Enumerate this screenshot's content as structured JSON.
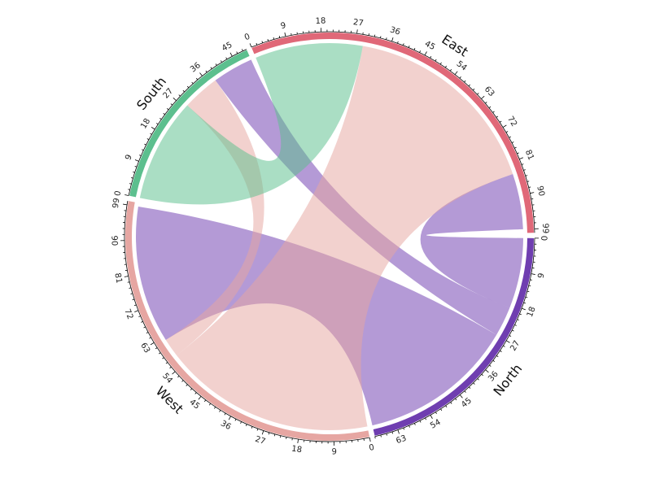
{
  "chart_data": {
    "type": "chord",
    "title": "",
    "sectors": [
      {
        "name": "East",
        "total": 100,
        "color": "#e06878"
      },
      {
        "name": "North",
        "total": 69,
        "color": "#6f3eb0"
      },
      {
        "name": "West",
        "total": 100,
        "color": "#e6a6a2"
      },
      {
        "name": "South",
        "total": 49,
        "color": "#5cbf8e"
      }
    ],
    "tick_step": 9,
    "links": [
      {
        "from": "West",
        "from_range": [
          62,
          99
        ],
        "to": "North",
        "to_range": [
          27,
          69
        ],
        "color": "#6f3eb0"
      },
      {
        "from": "East",
        "from_range": [
          84,
          99
        ],
        "to": "North",
        "to_range": [
          0,
          19
        ],
        "color": "#6f3eb0"
      },
      {
        "from": "South",
        "from_range": [
          38,
          49
        ],
        "to": "North",
        "to_range": [
          19,
          27
        ],
        "color": "#6f3eb0"
      },
      {
        "from": "East",
        "from_range": [
          29,
          84
        ],
        "to": "West",
        "to_range": [
          0,
          57
        ],
        "color": "#e6a6a2"
      },
      {
        "from": "South",
        "from_range": [
          28,
          38
        ],
        "to": "West",
        "to_range": [
          57,
          62
        ],
        "color": "#e6a6a2"
      },
      {
        "from": "South",
        "from_range": [
          0,
          28
        ],
        "to": "East",
        "to_range": [
          0,
          29
        ],
        "color": "#5cbf8e"
      }
    ]
  }
}
